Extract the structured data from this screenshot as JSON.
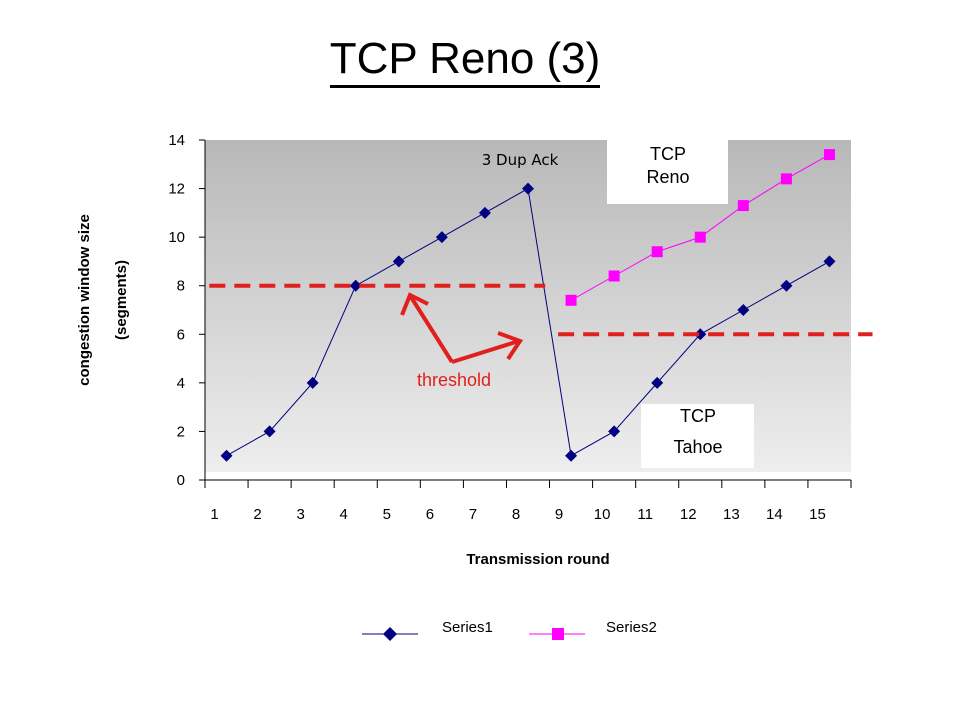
{
  "title": "TCP Reno (3)",
  "colors": {
    "series1": "#000080",
    "series2": "#ff00ff",
    "threshold": "#e0201c",
    "plot_bg_top": "#b8b8b8",
    "plot_bg_bottom": "#eeeeee"
  },
  "annotations": {
    "dup_ack": "3 Dup Ack",
    "reno_box": [
      "TCP",
      "Reno"
    ],
    "tahoe_box": [
      "TCP",
      "Tahoe"
    ],
    "threshold": "threshold"
  },
  "chart_data": {
    "type": "line",
    "xlabel": "Transmission round",
    "ylabel": [
      "congestion window size",
      "(segments)"
    ],
    "categories": [
      1,
      2,
      3,
      4,
      5,
      6,
      7,
      8,
      9,
      10,
      11,
      12,
      13,
      14,
      15
    ],
    "ylim": [
      0,
      14
    ],
    "yticks": [
      0,
      2,
      4,
      6,
      8,
      10,
      12,
      14
    ],
    "grid": false,
    "legend": "bottom",
    "series": [
      {
        "name": "Series1",
        "color": "#000080",
        "marker": "diamond",
        "values": [
          1,
          2,
          4,
          8,
          9,
          10,
          11,
          12,
          1,
          2,
          4,
          6,
          7,
          8,
          9
        ]
      },
      {
        "name": "Series2",
        "color": "#ff00ff",
        "marker": "square",
        "values": [
          null,
          null,
          null,
          null,
          null,
          null,
          null,
          null,
          7.4,
          8.4,
          9.4,
          10,
          11.3,
          12.4,
          13.4
        ]
      }
    ],
    "threshold_lines": [
      {
        "value": 8,
        "x_from": 0.1,
        "x_to": 7.9
      },
      {
        "value": 6,
        "x_from": 8.2,
        "x_to": 15.5
      }
    ]
  }
}
